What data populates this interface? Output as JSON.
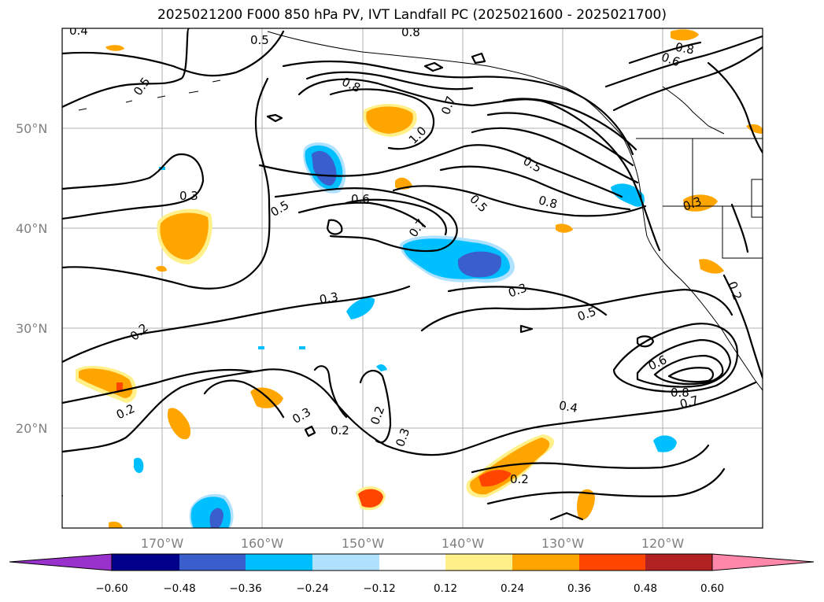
{
  "title": "2025021200 F000 850 hPa PV, IVT Landfall PC (2025021600 - 2025021700)",
  "lon_labels": [
    "170°W",
    "160°W",
    "150°W",
    "140°W",
    "130°W",
    "120°W"
  ],
  "lat_labels": [
    "50°N",
    "40°N",
    "30°N",
    "20°N"
  ],
  "colorbar": {
    "ticks": [
      "−0.60",
      "−0.48",
      "−0.36",
      "−0.24",
      "−0.12",
      "0.12",
      "0.24",
      "0.36",
      "0.48",
      "0.60"
    ],
    "colors": [
      "#9932cc",
      "#00008b",
      "#3a5fcd",
      "#00bfff",
      "#b0e2ff",
      "#ffffff",
      "#fff08a",
      "#ffa500",
      "#ff4500",
      "#b22222",
      "#ff88aa"
    ]
  },
  "contour_labels": [
    "0.4",
    "0.5",
    "0.5",
    "0.3",
    "0.2",
    "0.2",
    "0.8",
    "0.6",
    "0.8",
    "0.8",
    "0.7",
    "1.0",
    "0.5",
    "0.5",
    "0.6",
    "0.7",
    "0.5",
    "0.8",
    "0.3",
    "0.3",
    "0.3",
    "0.5",
    "0.6",
    "0.8",
    "0.7",
    "0.4",
    "0.2",
    "0.3",
    "0.2",
    "0.2",
    "0.3",
    "0.2"
  ]
}
